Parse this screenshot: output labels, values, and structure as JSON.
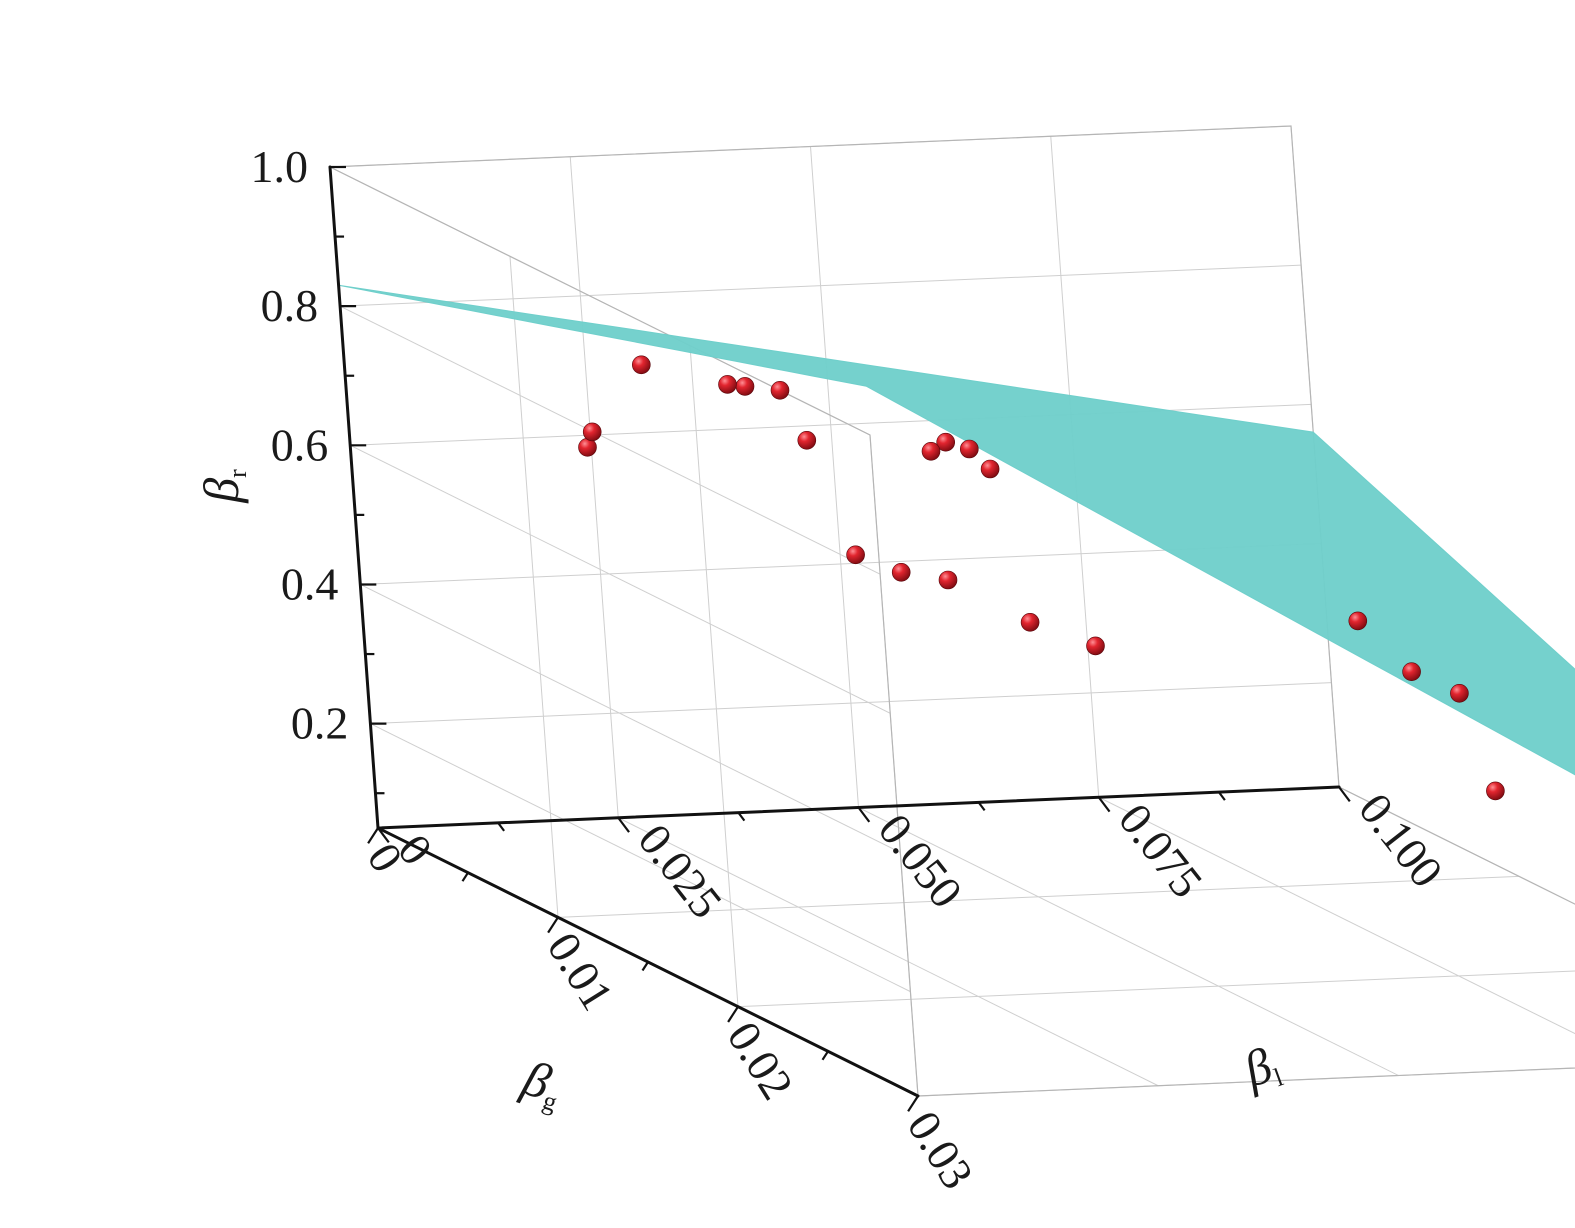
{
  "chart_data": {
    "type": "scatter",
    "subtype": "3d-scatter-with-fitted-surface",
    "axes": {
      "x": {
        "label": "β",
        "label_sub": "l",
        "ticks": [
          "0",
          "0.025",
          "0.050",
          "0.075",
          "0.100"
        ],
        "range": [
          0,
          0.1
        ]
      },
      "y": {
        "label": "β",
        "label_sub": "g",
        "ticks": [
          "0",
          "0.01",
          "0.02",
          "0.03"
        ],
        "range": [
          0,
          0.03
        ]
      },
      "z": {
        "label": "β",
        "label_sub": "r",
        "ticks": [
          "0.2",
          "0.4",
          "0.6",
          "0.8",
          "1.0"
        ],
        "range": [
          0.05,
          1.0
        ]
      }
    },
    "grid": true,
    "surface": {
      "color": "#6fcfcb",
      "corners": {
        "bl0_bg0": 0.83,
        "bl0_bg003": 1.07,
        "bl01_bg0": 0.56,
        "bl01_bg003": 0.22
      }
    },
    "marker_color": "#cc1f2a",
    "points": [
      {
        "bl": 0.0,
        "bg": 0.025,
        "br": 1.0
      },
      {
        "bl": 0.0,
        "bg": 0.023,
        "br": 0.98
      },
      {
        "bl": 0.0,
        "bg": 0.022,
        "br": 0.97
      },
      {
        "bl": 0.002,
        "bg": 0.016,
        "br": 0.92
      },
      {
        "bl": 0.012,
        "bg": 0.029,
        "br": 0.96
      },
      {
        "bl": 0.014,
        "bg": 0.029,
        "br": 0.93
      },
      {
        "bl": 0.024,
        "bg": 0.021,
        "br": 0.86
      },
      {
        "bl": 0.026,
        "bg": 0.019,
        "br": 0.82
      },
      {
        "bl": 0.024,
        "bg": 0.013,
        "br": 0.76
      },
      {
        "bl": 0.012,
        "bg": 0.007,
        "br": 0.68
      },
      {
        "bl": 0.018,
        "bg": 0.004,
        "br": 0.66
      },
      {
        "bl": 0.051,
        "bg": 0.029,
        "br": 0.69
      },
      {
        "bl": 0.058,
        "bg": 0.028,
        "br": 0.6
      },
      {
        "bl": 0.061,
        "bg": 0.029,
        "br": 0.58
      },
      {
        "bl": 0.049,
        "bg": 0.004,
        "br": 0.44
      },
      {
        "bl": 0.052,
        "bg": 0.005,
        "br": 0.44
      },
      {
        "bl": 0.048,
        "bg": 0.002,
        "br": 0.44
      },
      {
        "bl": 0.053,
        "bg": 0.009,
        "br": 0.43
      },
      {
        "bl": 0.056,
        "bg": 0.011,
        "br": 0.42
      },
      {
        "bl": 0.087,
        "bg": 0.022,
        "br": 0.4
      },
      {
        "bl": 0.076,
        "bg": 0.029,
        "br": 0.45
      },
      {
        "bl": 0.1,
        "bg": 0.009,
        "br": 0.16
      }
    ]
  }
}
